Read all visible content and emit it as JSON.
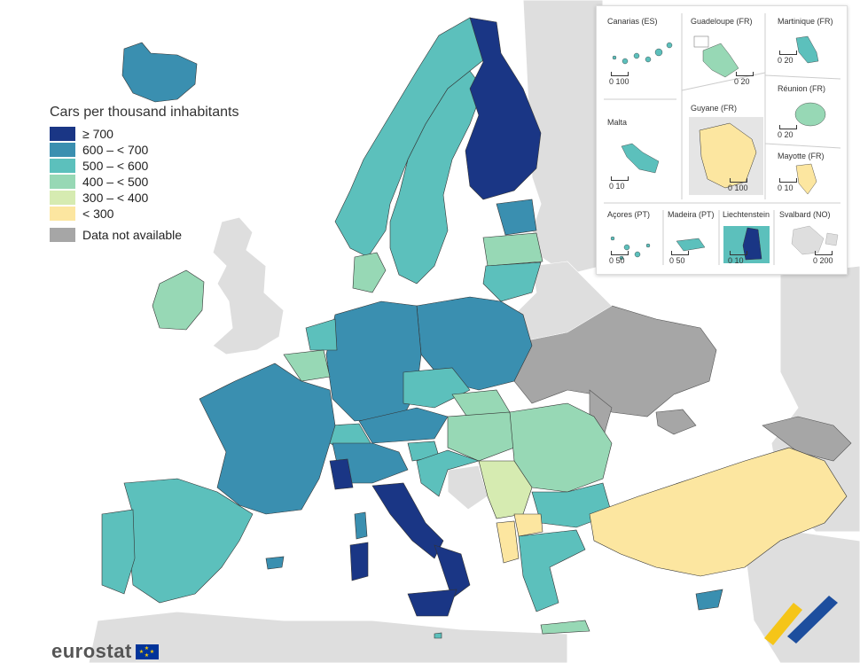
{
  "legend": {
    "title": "Cars per thousand inhabitants",
    "classes": [
      {
        "label": "≥ 700",
        "color": "#1a3685"
      },
      {
        "label": "600 – < 700",
        "color": "#3a8fb0"
      },
      {
        "label": "500 – < 600",
        "color": "#5cc0bc"
      },
      {
        "label": "400 – < 500",
        "color": "#97d8b5"
      },
      {
        "label": "300 – < 400",
        "color": "#d6ebb1"
      },
      {
        "label": "< 300",
        "color": "#fce6a0"
      }
    ],
    "na_label": "Data not available",
    "na_color": "#a6a6a6"
  },
  "insets": [
    {
      "name": "Canarias (ES)",
      "scale": "0   100"
    },
    {
      "name": "Guadeloupe (FR)",
      "scale": "0   20"
    },
    {
      "name": "Martinique (FR)",
      "scale": "0   20"
    },
    {
      "name": "Réunion (FR)",
      "scale": "0   20"
    },
    {
      "name": "Malta",
      "scale": "0   10"
    },
    {
      "name": "Guyane (FR)",
      "scale": "0   100"
    },
    {
      "name": "Mayotte (FR)",
      "scale": "0   10"
    },
    {
      "name": "Açores (PT)",
      "scale": "0   50"
    },
    {
      "name": "Madeira (PT)",
      "scale": "0   50"
    },
    {
      "name": "Liechtenstein",
      "scale": "0   10"
    },
    {
      "name": "Svalbard (NO)",
      "scale": "0   200"
    }
  ],
  "logo": {
    "text": "eurostat"
  },
  "colors": {
    "sea": "#ffffff",
    "non_eu": "#dedede",
    "border": "#3a3a3a"
  }
}
